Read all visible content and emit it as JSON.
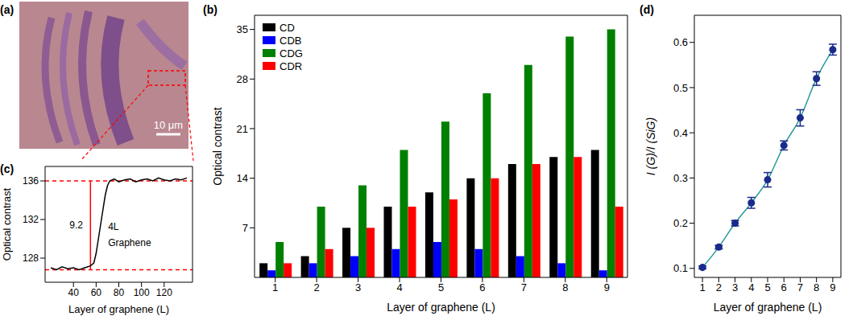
{
  "image": {
    "panel": "(a)",
    "scale_bar": "10 μm"
  },
  "chart_data": [
    {
      "panel": "(b)",
      "type": "bar",
      "categories": [
        "1",
        "2",
        "3",
        "4",
        "5",
        "6",
        "7",
        "8",
        "9"
      ],
      "series": [
        {
          "name": "CD",
          "color": "#000000",
          "values": [
            2,
            3,
            7,
            10,
            12,
            14,
            16,
            17,
            18
          ]
        },
        {
          "name": "CDB",
          "color": "#0000ff",
          "values": [
            1,
            2,
            3,
            4,
            5,
            4,
            3,
            2,
            1
          ]
        },
        {
          "name": "CDG",
          "color": "#008000",
          "values": [
            5,
            10,
            13,
            18,
            22,
            26,
            30,
            34,
            35
          ]
        },
        {
          "name": "CDR",
          "color": "#ff0000",
          "values": [
            2,
            4,
            7,
            10,
            11,
            14,
            16,
            17,
            10
          ]
        }
      ],
      "xlabel": "Layer of graphene (L)",
      "ylabel": "Optical contrast",
      "ylim": [
        0,
        37
      ],
      "yticks": [
        7,
        14,
        21,
        28,
        35
      ],
      "legend": "upper left"
    },
    {
      "panel": "(c)",
      "type": "line",
      "x": [
        20,
        25,
        30,
        35,
        40,
        45,
        50,
        55,
        58,
        60,
        62,
        64,
        66,
        68,
        70,
        72,
        76,
        80,
        85,
        90,
        95,
        100,
        105,
        110,
        115,
        120,
        125,
        130,
        135,
        140
      ],
      "series": [
        {
          "color": "#000000",
          "values": [
            127,
            126.8,
            127.1,
            126.9,
            127,
            126.8,
            127,
            127.2,
            127.5,
            128.5,
            130,
            131.5,
            133,
            134.5,
            135.5,
            136,
            136.2,
            135.9,
            136.1,
            136.2,
            135.9,
            136.1,
            136.2,
            136,
            136.3,
            136.1,
            136,
            136.2,
            136.1,
            136.3
          ]
        }
      ],
      "xlim": [
        15,
        145
      ],
      "xticks": [
        40,
        60,
        80,
        100,
        120
      ],
      "ylim": [
        125.5,
        137.5
      ],
      "yticks": [
        128,
        132,
        136
      ],
      "xlabel": "Layer of graphene (L)",
      "ylabel": "Optical contrast",
      "hlines": {
        "values": [
          126.8,
          136
        ],
        "color": "#ff0000",
        "line_style": "dashed"
      },
      "arrow": {
        "x": 55,
        "from": 126.8,
        "to": 136,
        "color": "#ff0000",
        "label": "9.2",
        "label_x": 33
      },
      "annotations": [
        {
          "text": "4L",
          "x": 67,
          "y": 131.3
        },
        {
          "text": "Graphene",
          "x": 67,
          "y": 129.6
        }
      ]
    },
    {
      "panel": "(d)",
      "type": "line",
      "x": [
        1,
        2,
        3,
        4,
        5,
        6,
        7,
        8,
        9
      ],
      "series": [
        {
          "type": "line",
          "color": "#2a9a9a",
          "values": [
            0.102,
            0.147,
            0.2,
            0.245,
            0.296,
            0.372,
            0.433,
            0.52,
            0.584
          ]
        },
        {
          "type": "scatter",
          "color": "#1a2a8a",
          "marker": "circle",
          "values": [
            0.102,
            0.147,
            0.2,
            0.245,
            0.296,
            0.372,
            0.433,
            0.52,
            0.584
          ],
          "error": [
            0.003,
            0.004,
            0.006,
            0.012,
            0.016,
            0.01,
            0.018,
            0.015,
            0.012
          ]
        }
      ],
      "xlim": [
        0.5,
        9.5
      ],
      "xticks": [
        1,
        2,
        3,
        4,
        5,
        6,
        7,
        8,
        9
      ],
      "ylim": [
        0.08,
        0.66
      ],
      "yticks": [
        0.1,
        0.2,
        0.3,
        0.4,
        0.5,
        0.6
      ],
      "xlabel": "Layer of graphene (L)",
      "ylabel": "I (G)/I (SiG)"
    }
  ]
}
